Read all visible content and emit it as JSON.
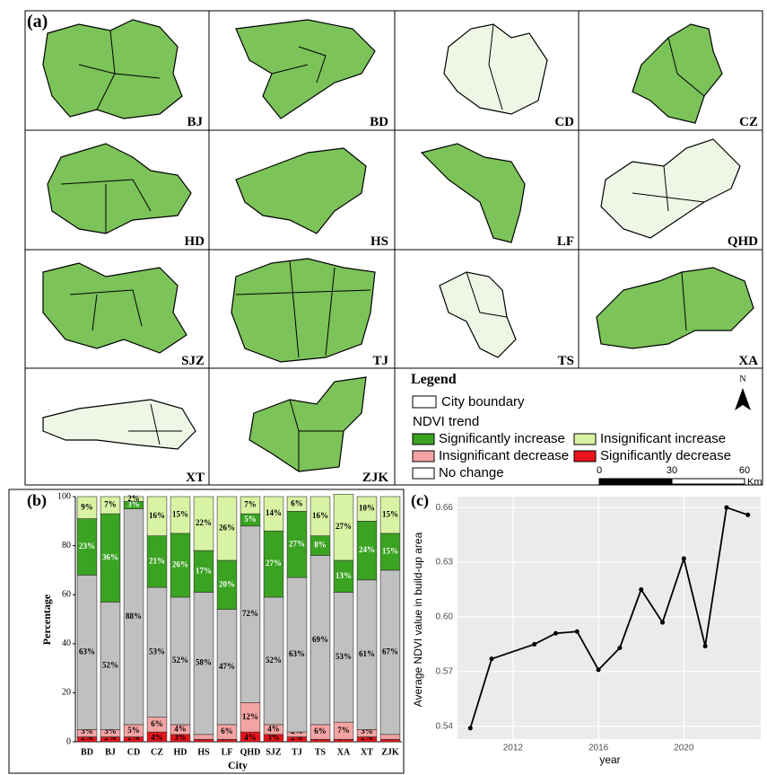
{
  "maps": {
    "panel_label": "(a)",
    "cities": [
      "BJ",
      "BD",
      "CD",
      "CZ",
      "HD",
      "HS",
      "LF",
      "QHD",
      "SJZ",
      "TJ",
      "TS",
      "XA",
      "XT",
      "ZJK"
    ],
    "legend": {
      "title": "Legend",
      "boundary": "City boundary",
      "trend_title": "NDVI trend"
    },
    "scale_ticks": [
      0,
      30,
      60
    ],
    "scale_unit": "Km",
    "north": "N"
  },
  "chart_data": [
    {
      "type": "stacked_bar",
      "panel_label": "(b)",
      "y_label": "Percentage",
      "x_label": "City",
      "categories": [
        "BD",
        "BJ",
        "CD",
        "CZ",
        "HD",
        "HS",
        "LF",
        "QHD",
        "SJZ",
        "TJ",
        "TS",
        "XA",
        "XT",
        "ZJK"
      ],
      "ylim": [
        0,
        100
      ],
      "yticks": [
        0,
        20,
        40,
        60,
        80,
        100
      ],
      "series": [
        {
          "name": "Significantly decrease",
          "color": "#e8131b",
          "values": [
            2,
            2,
            2,
            4,
            3,
            1,
            1,
            4,
            3,
            2,
            1,
            1,
            2,
            1
          ],
          "value_labels": [
            "2%",
            "2%",
            "2%",
            "4%",
            "3%",
            "1%",
            "1%",
            "4%",
            "3%",
            "2%",
            "1%",
            "1%",
            "2%",
            "1%"
          ]
        },
        {
          "name": "Insignificant decrease",
          "color": "#f4a3a3",
          "values": [
            3,
            3,
            5,
            6,
            4,
            2,
            6,
            12,
            4,
            2,
            6,
            7,
            3,
            2
          ],
          "value_labels": [
            "3%",
            "3%",
            "5%",
            "6%",
            "4%",
            "2%",
            "6%",
            "12%",
            "4%",
            "2%",
            "6%",
            "7%",
            "3%",
            "2%"
          ]
        },
        {
          "name": "No change",
          "color": "#c0c0c0",
          "values": [
            63,
            52,
            88,
            53,
            52,
            58,
            47,
            72,
            52,
            63,
            69,
            53,
            61,
            67
          ],
          "value_labels": [
            "63%",
            "52%",
            "88%",
            "53%",
            "52%",
            "58%",
            "47%",
            "72%",
            "52%",
            "63%",
            "69%",
            "53%",
            "61%",
            "67%"
          ]
        },
        {
          "name": "Significantly increase",
          "color": "#3aa321",
          "values": [
            23,
            36,
            3,
            21,
            26,
            17,
            20,
            5,
            27,
            27,
            8,
            13,
            24,
            15
          ],
          "value_labels": [
            "23%",
            "36%",
            "3%",
            "21%",
            "26%",
            "17%",
            "20%",
            "5%",
            "27%",
            "27%",
            "8%",
            "13%",
            "24%",
            "15%"
          ]
        },
        {
          "name": "Insignificant increase",
          "color": "#d8f3a4",
          "values": [
            9,
            7,
            2,
            16,
            15,
            22,
            26,
            7,
            14,
            6,
            16,
            27,
            10,
            15
          ],
          "value_labels": [
            "9%",
            "7%",
            "2%",
            "16%",
            "15%",
            "22%",
            "26%",
            "7%",
            "14%",
            "6%",
            "16%",
            "27%",
            "10%",
            "15%"
          ]
        }
      ]
    },
    {
      "type": "line",
      "panel_label": "(c)",
      "x_label": "year",
      "y_label": "Average NDVI value in build-up area",
      "x": [
        2010,
        2011,
        2013,
        2014,
        2015,
        2016,
        2017,
        2018,
        2019,
        2020,
        2021,
        2022,
        2023
      ],
      "values": [
        0.539,
        0.577,
        0.585,
        0.591,
        0.592,
        0.571,
        0.583,
        0.615,
        0.597,
        0.632,
        0.584,
        0.66,
        0.656
      ],
      "color": "#000000",
      "xlim": [
        2009.4,
        2023.6
      ],
      "xticks": [
        2012,
        2016,
        2020
      ],
      "ylim": [
        0.533,
        0.666
      ],
      "yticks": [
        0.54,
        0.57,
        {
          "value": 0.6,
          "label": "0.60"
        },
        0.63,
        0.66
      ],
      "grid": true
    }
  ]
}
